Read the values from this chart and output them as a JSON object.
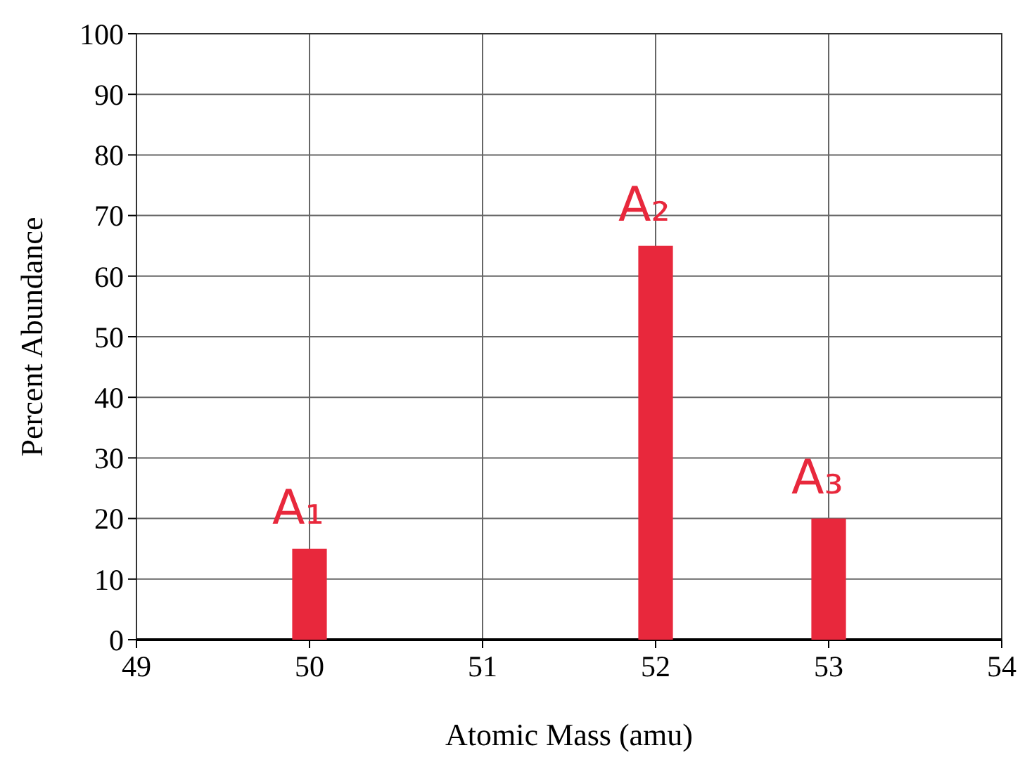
{
  "chart_data": {
    "type": "bar",
    "xlabel": "Atomic Mass (amu)",
    "ylabel": "Percent Abundance",
    "x": [
      50,
      52,
      53
    ],
    "values": [
      15,
      65,
      20
    ],
    "color": "#e8283c",
    "xlim": [
      49,
      54
    ],
    "xticks": [
      49,
      50,
      51,
      52,
      53,
      54
    ],
    "ylim": [
      0,
      100
    ],
    "yticks": [
      0,
      10,
      20,
      30,
      40,
      50,
      60,
      70,
      80,
      90,
      100
    ],
    "grid": true,
    "annotations": [
      {
        "text": "A₁",
        "x": 50,
        "y": 15
      },
      {
        "text": "A₂",
        "x": 52,
        "y": 65
      },
      {
        "text": "A₃",
        "x": 53,
        "y": 20
      }
    ]
  }
}
